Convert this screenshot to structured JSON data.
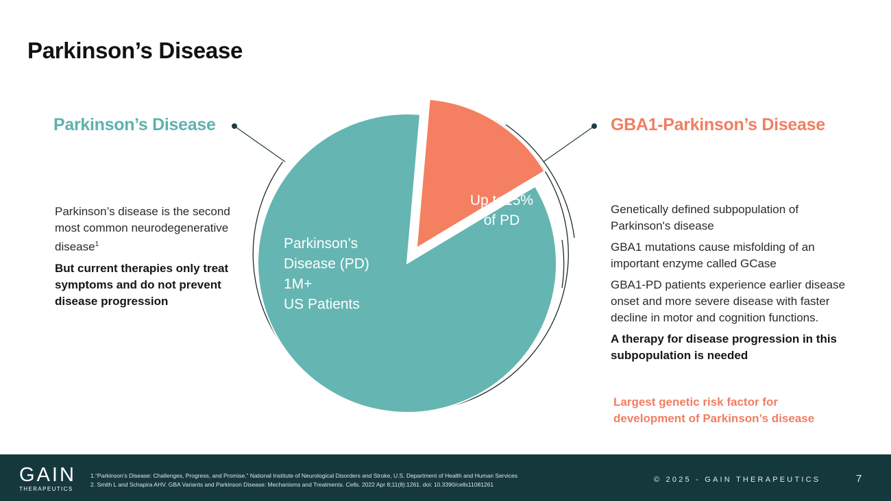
{
  "title": "Parkinson’s Disease",
  "left": {
    "heading": "Parkinson’s Disease",
    "body": "Parkinson’s disease is the second most common neurodegenerative disease",
    "footnote_ref": "1",
    "bold": "But current therapies only treat symptoms and do not prevent disease progression"
  },
  "right": {
    "heading": "GBA1-Parkinson’s Disease",
    "p1": "Genetically defined subpopulation of Parkinson's disease",
    "p2": "GBA1 mutations cause misfolding of an important enzyme called GCase",
    "p3": "GBA1-PD patients experience earlier disease onset and more severe disease with faster decline in motor and cognition functions.",
    "bold": "A therapy for disease progression in this subpopulation is needed",
    "risk": "Largest genetic risk factor for development of Parkinson’s disease"
  },
  "chart_data": {
    "type": "pie",
    "slices": [
      {
        "name": "Parkinson’s Disease (PD)",
        "share": 85,
        "color": "#65b5b2",
        "label_lines": [
          "Parkinson’s",
          "Disease (PD)",
          "1M+",
          "US Patients"
        ]
      },
      {
        "name": "GBA1-PD",
        "share": 15,
        "color": "#f47f61",
        "exploded": true,
        "label_lines": [
          "Up to15%",
          "of PD"
        ]
      }
    ]
  },
  "footer": {
    "logo": "GAIN",
    "logo_sub": "THERAPEUTICS",
    "ref1": "1.“Parkinson’s Disease: Challenges, Progress, and Promise.” National Institute of Neurological Disorders and Stroke, U.S. Department of Health and Human Services",
    "ref2": "2. Smith L and Schapira AHV. GBA Variants and Parkinson Disease: Mechanisms and Treatments. Cells. 2022 Apr 8;11(8):1261. doi: 10.3390/cells11081261",
    "copyright": "© 2025 - GAIN THERAPEUTICS",
    "page": "7"
  }
}
